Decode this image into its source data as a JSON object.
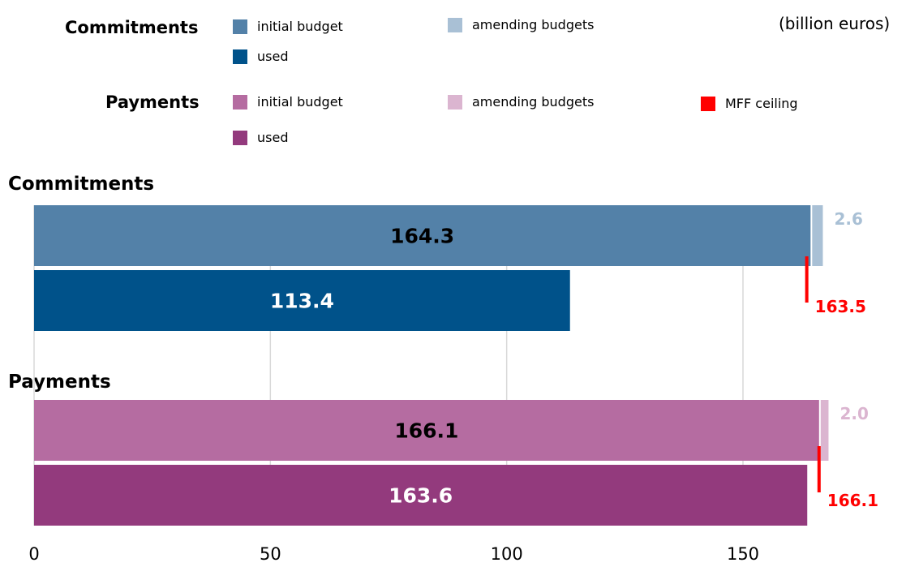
{
  "unit_label": "(billion euros)",
  "legend": {
    "commitments": {
      "title": "Commitments",
      "items": [
        {
          "label": "initial budget",
          "color": "#5381a8"
        },
        {
          "label": "amending budgets",
          "color": "#a9c0d5"
        },
        {
          "label": "used",
          "color": "#00528a"
        }
      ]
    },
    "payments": {
      "title": "Payments",
      "items": [
        {
          "label": "initial budget",
          "color": "#b56ca1"
        },
        {
          "label": "amending budgets",
          "color": "#dbb5d0"
        },
        {
          "label": "MFF ceiling",
          "color": "#ff0000"
        },
        {
          "label": "used",
          "color": "#933a7d"
        }
      ]
    }
  },
  "chart_data": {
    "type": "bar",
    "orientation": "horizontal",
    "xlim": [
      0,
      170
    ],
    "x_ticks": [
      0,
      50,
      100,
      150
    ],
    "grid": true,
    "groups": [
      {
        "name": "Commitments",
        "initial_budget": 164.3,
        "initial_label": "164.3",
        "amending_budgets": 2.6,
        "amending_label": "2.6",
        "used": 113.4,
        "used_label": "113.4",
        "mff_ceiling": 163.5,
        "mff_label": "163.5",
        "colors": {
          "initial": "#5381a8",
          "amending": "#a9c0d5",
          "used": "#00528a"
        }
      },
      {
        "name": "Payments",
        "initial_budget": 166.1,
        "initial_label": "166.1",
        "amending_budgets": 2.0,
        "amending_label": "2.0",
        "used": 163.6,
        "used_label": "163.6",
        "mff_ceiling": 166.1,
        "mff_label": "166.1",
        "colors": {
          "initial": "#b56ca1",
          "amending": "#dbb5d0",
          "used": "#933a7d"
        }
      }
    ],
    "mff_color": "#ff0000"
  }
}
